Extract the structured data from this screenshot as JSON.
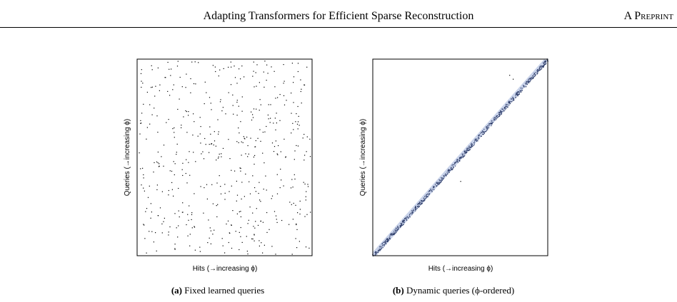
{
  "header": {
    "title": "Adapting Transformers for Efficient Sparse Reconstruction",
    "label": "A Preprint"
  },
  "figures": [
    {
      "tag": "(a)",
      "caption": "Fixed learned queries",
      "xlabel": "Hits (→increasing ϕ)",
      "ylabel": "Queries (→increasing ϕ)"
    },
    {
      "tag": "(b)",
      "caption": "Dynamic queries (ϕ-ordered)",
      "xlabel": "Hits (→increasing ϕ)",
      "ylabel": "Queries (→increasing ϕ)"
    }
  ],
  "chart_data": [
    {
      "type": "scatter",
      "pattern": "uniform-random",
      "xlabel": "Hits (→increasing ϕ)",
      "ylabel": "Queries (→increasing ϕ)",
      "xlim": [
        0,
        1
      ],
      "ylim": [
        0,
        1
      ],
      "grid": false,
      "point_color": "#000000"
    },
    {
      "type": "scatter",
      "pattern": "diagonal-band",
      "xlabel": "Hits (→increasing ϕ)",
      "ylabel": "Queries (→increasing ϕ)",
      "xlim": [
        0,
        1
      ],
      "ylim": [
        0,
        1
      ],
      "grid": false,
      "point_color": "#2b3a67",
      "band_color": "#c9d3ea"
    }
  ]
}
